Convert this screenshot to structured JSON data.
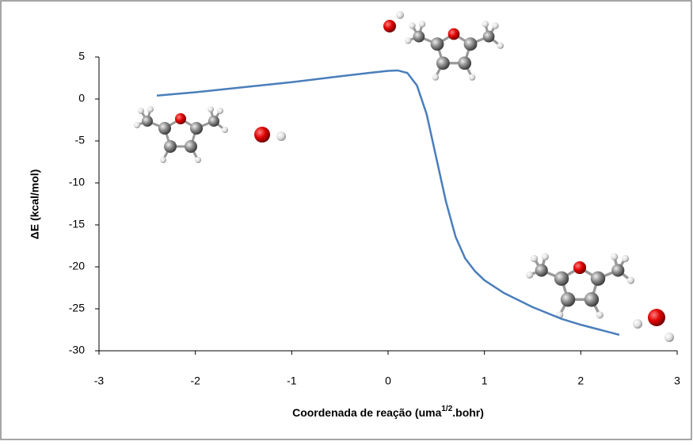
{
  "chart_data": {
    "type": "line",
    "ylabel": "ΔE (kcal/mol)",
    "xlabel_parts": [
      "Coordenada de reação  (uma",
      "1/2",
      ".bohr)"
    ],
    "x": [
      -2.4,
      -2.0,
      -1.5,
      -1.0,
      -0.5,
      -0.2,
      0.0,
      0.1,
      0.2,
      0.3,
      0.4,
      0.5,
      0.6,
      0.7,
      0.8,
      0.9,
      1.0,
      1.2,
      1.5,
      1.8,
      2.0,
      2.2,
      2.4
    ],
    "series": [
      {
        "color": "#4a7ebb",
        "values": [
          0.4,
          0.8,
          1.4,
          2.0,
          2.7,
          3.1,
          3.35,
          3.4,
          3.1,
          1.6,
          -1.8,
          -7.0,
          -12.2,
          -16.4,
          -19.0,
          -20.5,
          -21.6,
          -23.1,
          -24.8,
          -26.2,
          -26.9,
          -27.5,
          -28.1
        ]
      }
    ],
    "xlim": [
      -3,
      3
    ],
    "xticks": [
      -3,
      -2,
      -1,
      0,
      1,
      2,
      3
    ],
    "ylim": [
      -30,
      5
    ],
    "yticks": [
      -30,
      -25,
      -20,
      -15,
      -10,
      -5,
      0,
      5
    ]
  }
}
